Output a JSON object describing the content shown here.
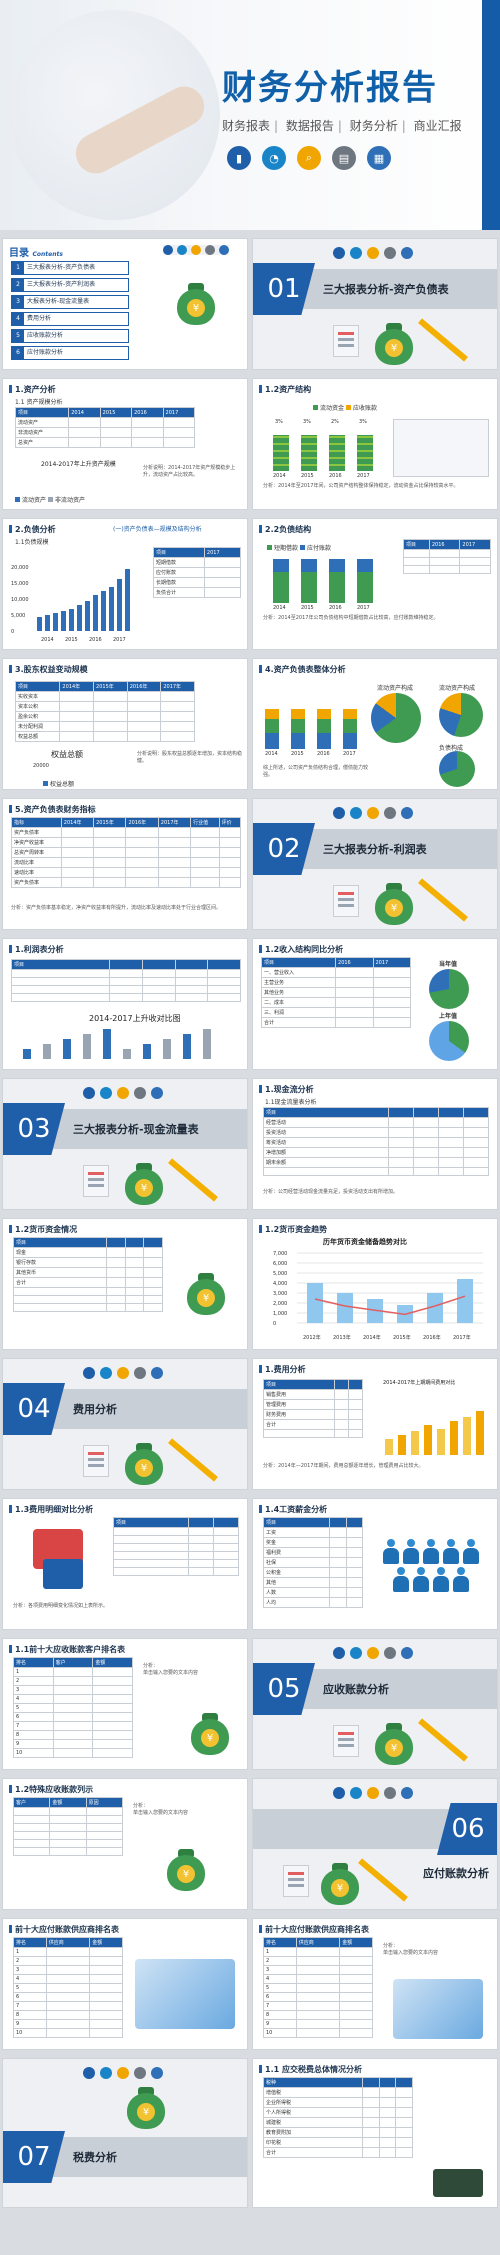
{
  "cover": {
    "title": "财务分析报告",
    "tags": [
      "财务报表",
      "数据报告",
      "财务分析",
      "商业汇报"
    ]
  },
  "toc": {
    "heading": "目录",
    "heading_en": "Contents",
    "items": [
      "三大报表分析-资产负债表",
      "三大报表分析-资产利润表",
      "大报表分析-现金流量表",
      "费用分析",
      "应收账款分析",
      "应付账款分析"
    ]
  },
  "sections": [
    {
      "num": "01",
      "title": "三大报表分析-资产负债表"
    },
    {
      "num": "02",
      "title": "三大报表分析-利润表"
    },
    {
      "num": "03",
      "title": "三大报表分析-现金流量表"
    },
    {
      "num": "04",
      "title": "费用分析"
    },
    {
      "num": "05",
      "title": "应收账款分析"
    },
    {
      "num": "06",
      "title": "应付账款分析"
    },
    {
      "num": "07",
      "title": "税费分析"
    }
  ],
  "slides": {
    "s11": {
      "hd": "1.资产分析",
      "sub": "1.1 资产规模分析",
      "chart": "2014-2017年上升资产规模",
      "years": [
        "2014",
        "2015",
        "2016",
        "2017"
      ],
      "legend": [
        "流动资产",
        "非流动资产",
        "总资产"
      ]
    },
    "s12": {
      "hd": "1.2资产结构",
      "legend": [
        "流动资金",
        "应收账款"
      ],
      "pcts": [
        "3%",
        "3%",
        "2%",
        "3%"
      ],
      "years": [
        "2014",
        "2015",
        "2016",
        "2017"
      ]
    },
    "s20": {
      "hd": "2.负债分析",
      "sub": "1.1负债规模",
      "chart_title": "(一)资产负债表—规模及结构分析",
      "yticks": [
        "20,000",
        "15,000",
        "10,000",
        "5,000",
        "0"
      ],
      "years": [
        "2014",
        "2015",
        "2016",
        "2017"
      ]
    },
    "s22": {
      "hd": "2.2负债结构",
      "legend": [
        "短期借款",
        "应付账款"
      ],
      "years": [
        "2014",
        "2015",
        "2016",
        "2017"
      ]
    },
    "s30": {
      "hd": "3.股东权益变动规模",
      "cols": [
        "2014年",
        "2015年",
        "2016年",
        "2017年"
      ],
      "rows": [
        "实收资本",
        "资本公积",
        "盈余公积",
        "未分配利润",
        "权益总额"
      ],
      "chart": "权益总额",
      "ytick": "20000",
      "legend": "权益总额"
    },
    "s40": {
      "hd": "4.资产负债表整体分析",
      "p1": "流动资产构成",
      "p2": "流动资产构成",
      "p3": "负债构成",
      "years": [
        "2014",
        "2015",
        "2016",
        "2017"
      ]
    },
    "s50": {
      "hd": "5.资产负债表财务指标",
      "cols": [
        "指标",
        "2014年",
        "2015年",
        "2016年",
        "2017年",
        "行业值",
        "评价"
      ],
      "rows": [
        "资产负债率",
        "净资产收益率",
        "总资产周转率",
        "流动比率",
        "速动比率",
        "资产负债率"
      ]
    },
    "s61": {
      "hd": "1.利润表分析",
      "chart": "2014-2017上升收对比图"
    },
    "s62": {
      "hd": "1.2收入结构同比分析",
      "cols": [
        "项目",
        "2016",
        "2017"
      ],
      "pie1": "当年值",
      "pie2": "上年值"
    },
    "s71": {
      "hd": "1.现金流分析",
      "sub": "1.1现金流量表分析"
    },
    "s72": {
      "hd": "1.2货币资金情况"
    },
    "s73": {
      "hd": "1.2货币资金趋势",
      "chart": "历年货币资金储备趋势对比",
      "yticks": [
        "7,000",
        "6,000",
        "5,000",
        "4,000",
        "3,000",
        "2,000",
        "1,000",
        "0"
      ],
      "years": [
        "2012年",
        "2013年",
        "2014年",
        "2015年",
        "2016年",
        "2017年"
      ]
    },
    "s81": {
      "hd": "1.费用分析",
      "chart": "2014-2017年上期期间费用对比"
    },
    "s82": {
      "hd": "1.3费用明细对比分析"
    },
    "s83": {
      "hd": "1.4工资薪金分析",
      "rows": [
        "工资",
        "奖金",
        "福利费",
        "社保",
        "公积金",
        "其他",
        "人数",
        "人均"
      ]
    },
    "s91": {
      "hd": "1.1前十大应收账款客户排名表",
      "note": "分析：",
      "note2": "单击输入您要的文本内容"
    },
    "s92": {
      "hd": "1.2特殊应收账款列示",
      "note": "分析：",
      "note2": "单击输入您要的文本内容"
    },
    "s93": {
      "hd": "前十大应付账款供应商排名表"
    },
    "s94": {
      "hd": "前十大应付账款供应商排名表",
      "note": "分析：",
      "note2": "单击输入您要的文本内容"
    },
    "s95": {
      "hd": "1.1 应交税费总体情况分析"
    }
  }
}
